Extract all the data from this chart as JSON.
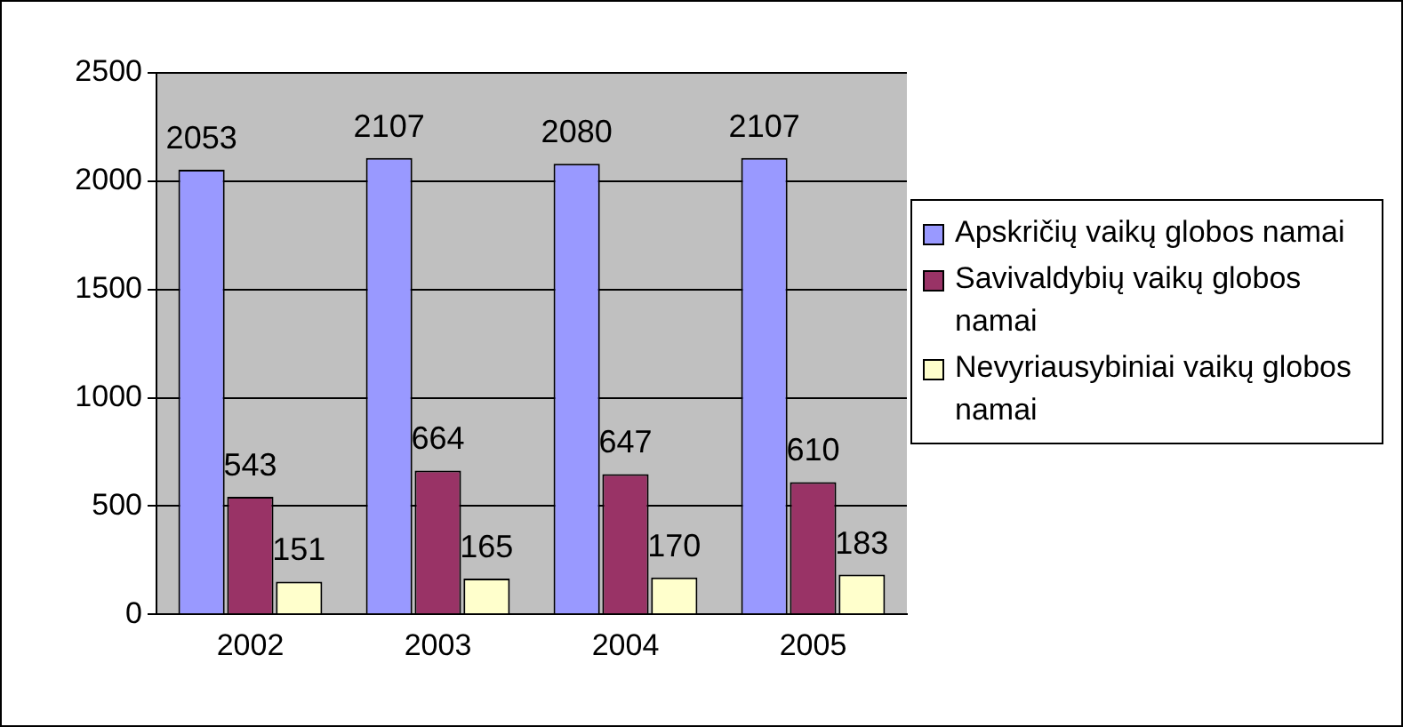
{
  "chart_data": {
    "type": "bar",
    "categories": [
      "2002",
      "2003",
      "2004",
      "2005"
    ],
    "series": [
      {
        "name": "Apskričių vaikų globos namai",
        "color": "#9999ff",
        "values": [
          2053,
          2107,
          2080,
          2107
        ]
      },
      {
        "name": "Savivaldybių vaikų globos namai",
        "color": "#993366",
        "values": [
          543,
          664,
          647,
          610
        ]
      },
      {
        "name": "Nevyriausybiniai vaikų globos namai",
        "color": "#ffffcc",
        "values": [
          151,
          165,
          170,
          183
        ]
      }
    ],
    "ylim": [
      0,
      2500
    ],
    "yticks": [
      0,
      500,
      1000,
      1500,
      2000,
      2500
    ],
    "grid": "y",
    "legend": "right",
    "data_labels": true
  }
}
